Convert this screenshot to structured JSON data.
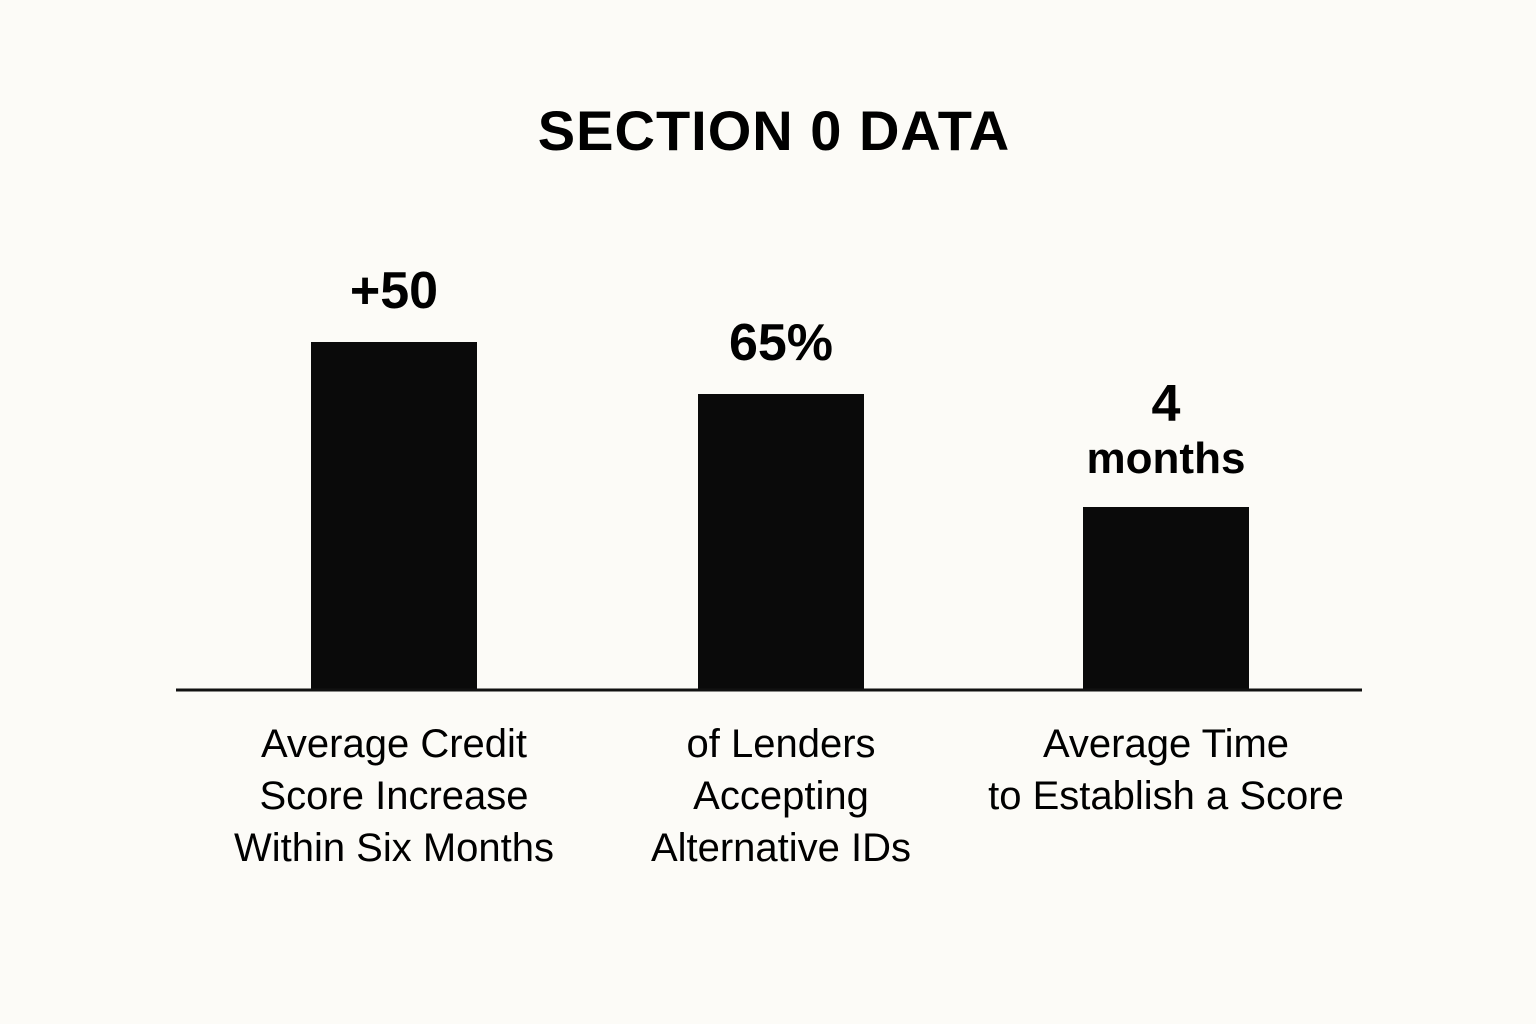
{
  "chart_data": {
    "type": "bar",
    "title": "SECTION 0 DATA",
    "xlabel": "",
    "ylabel": "",
    "grid": false,
    "bar_color": "#0a0a0a",
    "axis_color": "#111111",
    "background": "#fcfbf7",
    "categories": [
      [
        "Average Credit",
        "Score Increase",
        "Within Six Months"
      ],
      [
        "of Lenders",
        "Accepting",
        "Alternative IDs"
      ],
      [
        "Average Time",
        "to Establish a Score"
      ]
    ],
    "value_labels": [
      [
        "+50"
      ],
      [
        "65%"
      ],
      [
        "4",
        "months"
      ]
    ],
    "values": [
      50,
      65,
      4
    ]
  }
}
